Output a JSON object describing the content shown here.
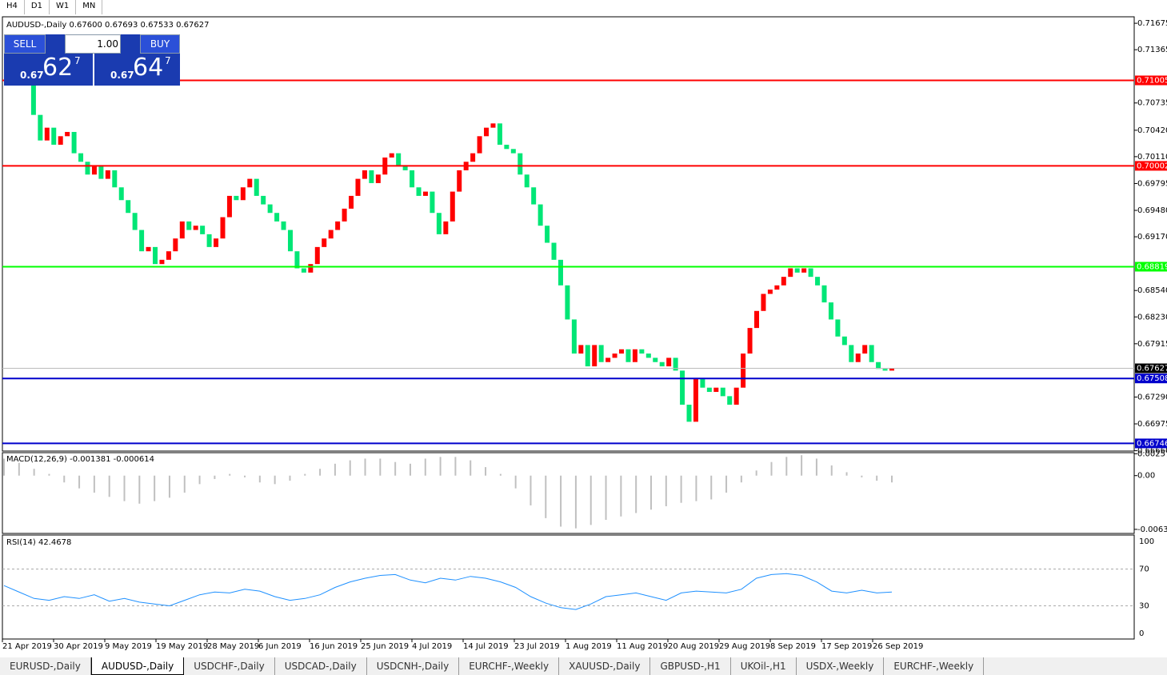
{
  "toolbar": [
    "H4",
    "D1",
    "W1",
    "MN"
  ],
  "trade_panel": {
    "sell": "SELL",
    "buy": "BUY",
    "lots": "1.00",
    "sell_big": "0.67",
    "sell_pips": "62",
    "sell_frac": "7",
    "buy_big": "0.67",
    "buy_pips": "64",
    "buy_frac": "7"
  },
  "chart_data": {
    "type": "candlestick",
    "title": "AUDUSD-,Daily 0.67600 0.67693 0.67533 0.67627",
    "ylim": [
      0.66656,
      0.71751
    ],
    "yticks": [
      0.71675,
      0.71365,
      {
        "value": 0.7074,
        "label": "0.70735"
      },
      {
        "value": 0.7042,
        "label": "0.70420"
      },
      {
        "value": 0.7011,
        "label": "0.70110"
      },
      0.69795,
      {
        "value": 0.6948,
        "label": "0.69480"
      },
      {
        "value": 0.6917,
        "label": "0.69170"
      },
      {
        "value": 0.6854,
        "label": "0.68540"
      },
      {
        "value": 0.6823,
        "label": "0.68230"
      },
      0.67915,
      {
        "value": 0.6729,
        "label": "0.67290"
      },
      0.66975,
      {
        "value": 0.6666,
        "label": "0.66660"
      }
    ],
    "x_labels": [
      "21 Apr 2019",
      "30 Apr 2019",
      "9 May 2019",
      "19 May 2019",
      "28 May 2019",
      "6 Jun 2019",
      "16 Jun 2019",
      "25 Jun 2019",
      "4 Jul 2019",
      "14 Jul 2019",
      "23 Jul 2019",
      "1 Aug 2019",
      "11 Aug 2019",
      "20 Aug 2019",
      "29 Aug 2019",
      "8 Sep 2019",
      "17 Sep 2019",
      "26 Sep 2019"
    ],
    "up_color": "#ff0000",
    "down_color": "#00e676",
    "closes": [
      0.7135,
      0.711,
      0.706,
      0.703,
      0.7045,
      0.7025,
      0.7035,
      0.704,
      0.7015,
      0.7005,
      0.699,
      0.7,
      0.6985,
      0.6995,
      0.6975,
      0.696,
      0.6945,
      0.6925,
      0.69,
      0.6905,
      0.6885,
      0.689,
      0.69,
      0.6915,
      0.6935,
      0.6925,
      0.693,
      0.692,
      0.6905,
      0.6915,
      0.694,
      0.6965,
      0.696,
      0.6975,
      0.6985,
      0.6965,
      0.6955,
      0.6945,
      0.6935,
      0.6925,
      0.69,
      0.688,
      0.6875,
      0.6885,
      0.6905,
      0.6915,
      0.6925,
      0.6935,
      0.695,
      0.6965,
      0.6985,
      0.6995,
      0.698,
      0.699,
      0.701,
      0.7015,
      0.7,
      0.6995,
      0.6975,
      0.6965,
      0.697,
      0.6945,
      0.692,
      0.6935,
      0.697,
      0.6995,
      0.7005,
      0.7015,
      0.7035,
      0.7045,
      0.705,
      0.7025,
      0.702,
      0.7015,
      0.699,
      0.6975,
      0.6955,
      0.693,
      0.691,
      0.689,
      0.686,
      0.682,
      0.678,
      0.679,
      0.6765,
      0.679,
      0.677,
      0.6775,
      0.678,
      0.6785,
      0.677,
      0.6785,
      0.678,
      0.6775,
      0.677,
      0.6765,
      0.6775,
      0.676,
      0.672,
      0.67,
      0.675,
      0.674,
      0.6735,
      0.674,
      0.673,
      0.672,
      0.674,
      0.678,
      0.681,
      0.683,
      0.685,
      0.6855,
      0.686,
      0.687,
      0.688,
      0.6875,
      0.688,
      0.687,
      0.686,
      0.684,
      0.682,
      0.68,
      0.679,
      0.677,
      0.678,
      0.679,
      0.677,
      0.6762,
      0.676,
      0.67627
    ],
    "levels": [
      {
        "value": 0.71005,
        "color": "#ff0000"
      },
      {
        "value": 0.70002,
        "color": "#ff0000"
      },
      {
        "value": 0.68819,
        "color": "#00ff00"
      },
      {
        "value": 0.67508,
        "color": "#0000cc"
      },
      {
        "value": 0.66746,
        "color": "#0000cc"
      }
    ],
    "current_price": 0.67627,
    "macd": {
      "title": "MACD(12,26,9) -0.001381 -0.000614",
      "ylim": [
        -0.0068,
        0.0027
      ],
      "yticks": [
        0.002571,
        {
          "value": 0,
          "label": "0.00"
        },
        -0.00632
      ],
      "color": "#c0c0c0",
      "values": [
        0.002,
        0.0015,
        0.0008,
        0.0002,
        -0.0008,
        -0.0015,
        -0.002,
        -0.0025,
        -0.003,
        -0.0033,
        -0.003,
        -0.0026,
        -0.002,
        -0.001,
        -0.0004,
        0.0002,
        -0.0002,
        -0.0008,
        -0.001,
        -0.0006,
        0.0002,
        0.0008,
        0.0014,
        0.0018,
        0.002,
        0.002,
        0.0016,
        0.0014,
        0.002,
        0.0022,
        0.0022,
        0.0018,
        0.001,
        0.0002,
        -0.0015,
        -0.0035,
        -0.005,
        -0.006,
        -0.0062,
        -0.0058,
        -0.0052,
        -0.0048,
        -0.0044,
        -0.004,
        -0.0036,
        -0.0032,
        -0.003,
        -0.0028,
        -0.002,
        -0.0008,
        0.0006,
        0.0016,
        0.0022,
        0.0024,
        0.002,
        0.0012,
        0.0004,
        -0.0002,
        -0.0006,
        -0.0008
      ]
    },
    "rsi": {
      "title": "RSI(14) 42.4678",
      "ylim": [
        0,
        100
      ],
      "yticks": [
        100,
        70,
        30,
        0
      ],
      "color": "#1e90ff",
      "values": [
        52,
        45,
        38,
        36,
        40,
        38,
        42,
        35,
        38,
        34,
        32,
        30,
        36,
        42,
        45,
        44,
        48,
        46,
        40,
        36,
        38,
        42,
        50,
        56,
        60,
        63,
        64,
        58,
        55,
        60,
        58,
        62,
        60,
        56,
        50,
        40,
        33,
        28,
        26,
        32,
        40,
        42,
        44,
        40,
        36,
        44,
        46,
        45,
        44,
        48,
        60,
        64,
        65,
        63,
        56,
        46,
        44,
        47,
        44,
        45
      ]
    }
  },
  "tabs": [
    "EURUSD-,Daily",
    "AUDUSD-,Daily",
    "USDCHF-,Daily",
    "USDCAD-,Daily",
    "USDCNH-,Daily",
    "EURCHF-,Weekly",
    "XAUUSD-,Daily",
    "GBPUSD-,H1",
    "UKOil-,H1",
    "USDX-,Weekly",
    "EURCHF-,Weekly"
  ]
}
